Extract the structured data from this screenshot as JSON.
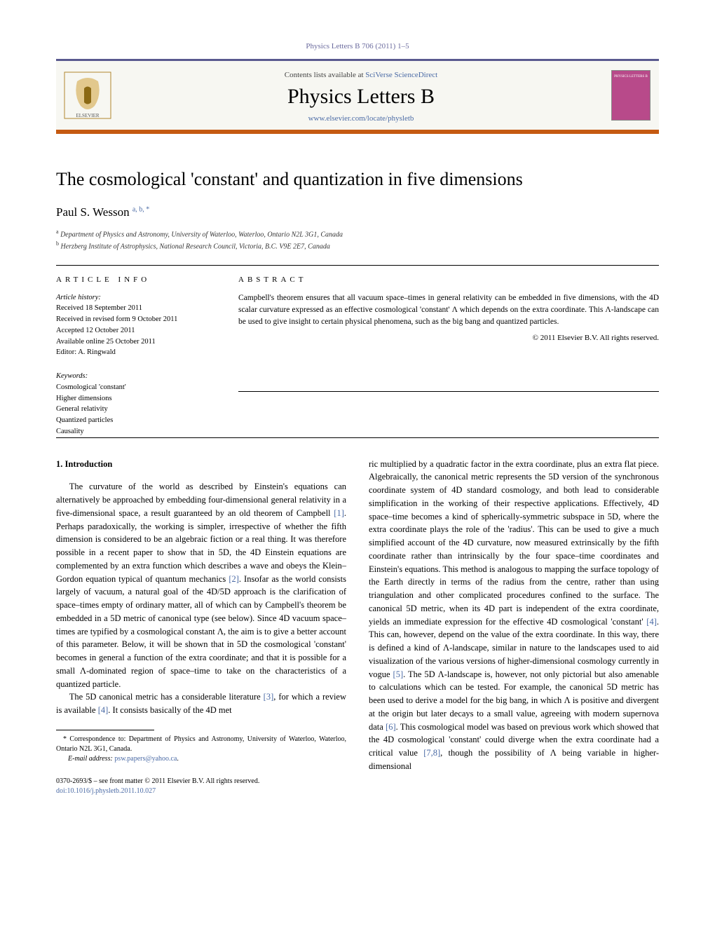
{
  "journal_ref": "Physics Letters B 706 (2011) 1–5",
  "header": {
    "contents_prefix": "Contents lists available at ",
    "contents_link": "SciVerse ScienceDirect",
    "journal_title": "Physics Letters B",
    "journal_url": "www.elsevier.com/locate/physletb",
    "cover_label": "PHYSICS LETTERS B"
  },
  "article": {
    "title": "The cosmological 'constant' and quantization in five dimensions",
    "author_name": "Paul S. Wesson",
    "author_sup": "a, b, *",
    "affiliations": {
      "a": "Department of Physics and Astronomy, University of Waterloo, Waterloo, Ontario N2L 3G1, Canada",
      "b": "Herzberg Institute of Astrophysics, National Research Council, Victoria, B.C. V9E 2E7, Canada"
    }
  },
  "info": {
    "section_label": "ARTICLE INFO",
    "history_label": "Article history:",
    "history": [
      "Received 18 September 2011",
      "Received in revised form 9 October 2011",
      "Accepted 12 October 2011",
      "Available online 25 October 2011",
      "Editor: A. Ringwald"
    ],
    "keywords_label": "Keywords:",
    "keywords": [
      "Cosmological 'constant'",
      "Higher dimensions",
      "General relativity",
      "Quantized particles",
      "Causality"
    ]
  },
  "abstract": {
    "section_label": "ABSTRACT",
    "text": "Campbell's theorem ensures that all vacuum space–times in general relativity can be embedded in five dimensions, with the 4D scalar curvature expressed as an effective cosmological 'constant' Λ which depends on the extra coordinate. This Λ-landscape can be used to give insight to certain physical phenomena, such as the big bang and quantized particles.",
    "copyright": "© 2011 Elsevier B.V. All rights reserved."
  },
  "body": {
    "section_number": "1.",
    "section_title": "Introduction",
    "para1": "The curvature of the world as described by Einstein's equations can alternatively be approached by embedding four-dimensional general relativity in a five-dimensional space, a result guaranteed by an old theorem of Campbell [1]. Perhaps paradoxically, the working is simpler, irrespective of whether the fifth dimension is considered to be an algebraic fiction or a real thing. It was therefore possible in a recent paper to show that in 5D, the 4D Einstein equations are complemented by an extra function which describes a wave and obeys the Klein–Gordon equation typical of quantum mechanics [2]. Insofar as the world consists largely of vacuum, a natural goal of the 4D/5D approach is the clarification of space–times empty of ordinary matter, all of which can by Campbell's theorem be embedded in a 5D metric of canonical type (see below). Since 4D vacuum space–times are typified by a cosmological constant Λ, the aim is to give a better account of this parameter. Below, it will be shown that in 5D the cosmological 'constant' becomes in general a function of the extra coordinate; and that it is possible for a small Λ-dominated region of space–time to take on the characteristics of a quantized particle.",
    "para2_a": "The 5D canonical metric has a considerable literature [3], for which a review is available [4]. It consists basically of the 4D met",
    "para2_b": "ric multiplied by a quadratic factor in the extra coordinate, plus an extra flat piece. Algebraically, the canonical metric represents the 5D version of the synchronous coordinate system of 4D standard cosmology, and both lead to considerable simplification in the working of their respective applications. Effectively, 4D space–time becomes a kind of spherically-symmetric subspace in 5D, where the extra coordinate plays the role of the 'radius'. This can be used to give a much simplified account of the 4D curvature, now measured extrinsically by the fifth coordinate rather than intrinsically by the four space–time coordinates and Einstein's equations. This method is analogous to mapping the surface topology of the Earth directly in terms of the radius from the centre, rather than using triangulation and other complicated procedures confined to the surface. The canonical 5D metric, when its 4D part is independent of the extra coordinate, yields an immediate expression for the effective 4D cosmological 'constant' [4]. This can, however, depend on the value of the extra coordinate. In this way, there is defined a kind of Λ-landscape, similar in nature to the landscapes used to aid visualization of the various versions of higher-dimensional cosmology currently in vogue [5]. The 5D Λ-landscape is, however, not only pictorial but also amenable to calculations which can be tested. For example, the canonical 5D metric has been used to derive a model for the big bang, in which Λ is positive and divergent at the origin but later decays to a small value, agreeing with modern supernova data [6]. This cosmological model was based on previous work which showed that the 4D cosmological 'constant' could diverge when the extra coordinate had a critical value [7,8], though the possibility of Λ being variable in higher-dimensional"
  },
  "footnotes": {
    "corr": "Correspondence to: Department of Physics and Astronomy, University of Waterloo, Waterloo, Ontario N2L 3G1, Canada.",
    "email_label": "E-mail address:",
    "email": "psw.papers@yahoo.ca"
  },
  "bottom": {
    "issn_line": "0370-2693/$ – see front matter © 2011 Elsevier B.V. All rights reserved.",
    "doi": "doi:10.1016/j.physletb.2011.10.027"
  },
  "colors": {
    "header_border_top": "#5a5a8f",
    "header_border_bottom": "#c55a11",
    "link": "#4a6aa5",
    "cover_bg": "#b84a8a"
  }
}
